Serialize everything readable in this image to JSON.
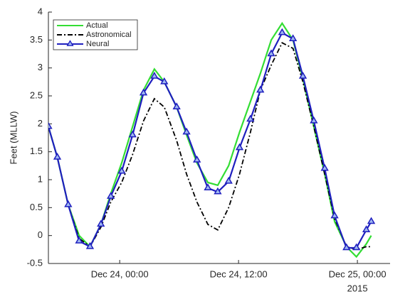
{
  "chart_data": {
    "type": "line",
    "ylabel": "Feet (MLLW)",
    "x_axis_year": "2015",
    "x": [
      -7.2,
      -6.3,
      -5.2,
      -4.1,
      -3.0,
      -1.9,
      -0.9,
      0.2,
      1.3,
      2.4,
      3.5,
      4.5,
      5.75,
      6.75,
      7.8,
      8.9,
      9.9,
      11.0,
      12.1,
      13.2,
      14.2,
      15.3,
      16.4,
      17.5,
      18.5,
      19.6,
      20.7,
      21.7,
      22.9,
      23.9,
      24.9,
      25.4
    ],
    "series": [
      {
        "name": "Actual",
        "color": "#33dd33",
        "style": "solid",
        "marker": false,
        "values": [
          1.95,
          1.4,
          0.55,
          0.0,
          -0.2,
          0.2,
          0.75,
          1.3,
          1.95,
          2.6,
          2.98,
          2.75,
          2.3,
          1.8,
          1.3,
          0.95,
          0.9,
          1.25,
          1.85,
          2.4,
          2.9,
          3.5,
          3.8,
          3.5,
          2.8,
          1.95,
          1.1,
          0.25,
          -0.2,
          -0.38,
          -0.15,
          0.0
        ]
      },
      {
        "name": "Astronomical",
        "color": "#000000",
        "style": "dashdot",
        "marker": false,
        "values": [
          1.95,
          1.4,
          0.55,
          -0.05,
          -0.2,
          0.15,
          0.6,
          0.95,
          1.45,
          2.05,
          2.45,
          2.3,
          1.7,
          1.1,
          0.6,
          0.2,
          0.1,
          0.5,
          1.1,
          1.85,
          2.6,
          3.05,
          3.45,
          3.35,
          2.75,
          1.95,
          1.1,
          0.3,
          -0.2,
          -0.25,
          -0.2,
          -0.2
        ]
      },
      {
        "name": "Neural",
        "color": "#1f1fbf",
        "style": "solid",
        "marker": true,
        "values": [
          1.95,
          1.4,
          0.55,
          -0.1,
          -0.2,
          0.2,
          0.7,
          1.15,
          1.8,
          2.55,
          2.85,
          2.75,
          2.3,
          1.85,
          1.35,
          0.85,
          0.78,
          0.97,
          1.57,
          2.08,
          2.6,
          3.25,
          3.63,
          3.52,
          2.85,
          2.05,
          1.2,
          0.35,
          -0.22,
          -0.22,
          0.1,
          0.25
        ]
      }
    ],
    "xlim": [
      -7.2,
      27.3
    ],
    "xticks": [
      {
        "value": 0,
        "label": "Dec 24, 00:00"
      },
      {
        "value": 12,
        "label": "Dec 24, 12:00"
      },
      {
        "value": 24,
        "label": "Dec 25, 00:00"
      }
    ],
    "ylim": [
      -0.5,
      4
    ],
    "yticks": [
      -0.5,
      0,
      0.5,
      1,
      1.5,
      2,
      2.5,
      3,
      3.5,
      4
    ],
    "legend": "upper left"
  }
}
